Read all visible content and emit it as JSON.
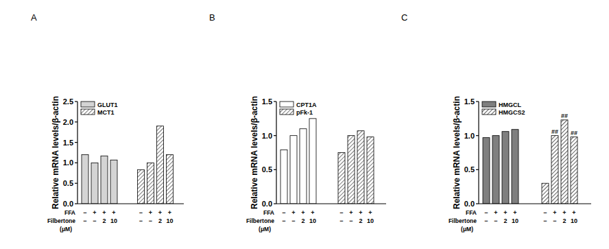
{
  "chart_data": [
    {
      "type": "bar",
      "title": "A",
      "y_label": "Relative mRNA levels/β-actin",
      "x_rows": [
        {
          "label": "FFA",
          "values": [
            "−",
            "+",
            "+",
            "+"
          ]
        },
        {
          "label": "Filbertone",
          "unit": "(μM)",
          "values": [
            "−",
            "−",
            "2",
            "10"
          ]
        }
      ],
      "series": [
        {
          "name": "GLUT1",
          "color": "#d4d4d4",
          "values": [
            1.2,
            1.0,
            1.17,
            1.07
          ]
        },
        {
          "name": "MCT1",
          "color": "#555555",
          "values": [
            0.83,
            1.0,
            1.9,
            1.2
          ]
        }
      ],
      "ylim": [
        0,
        2.5
      ],
      "yticks": [
        {
          "value": 0,
          "label": "0.0"
        },
        0.5,
        {
          "value": 1,
          "label": "1.0"
        },
        1.5,
        {
          "value": 2,
          "label": "2.0"
        },
        2.5
      ],
      "legend": "upper left"
    },
    {
      "type": "bar",
      "title": "B",
      "y_label": "Relative mRNA levels/β-actin",
      "x_rows": [
        {
          "label": "FFA",
          "values": [
            "−",
            "+",
            "+",
            "+"
          ]
        },
        {
          "label": "Filbertone",
          "unit": "(μM)",
          "values": [
            "−",
            "−",
            "2",
            "10"
          ]
        }
      ],
      "series": [
        {
          "name": "CPT1A",
          "color": "#ffffff",
          "values": [
            0.79,
            1.0,
            1.1,
            1.25
          ]
        },
        {
          "name": "pFk-1",
          "color": "#555555",
          "values": [
            0.75,
            1.0,
            1.07,
            0.98
          ]
        }
      ],
      "ylim": [
        0,
        1.5
      ],
      "yticks": [
        {
          "value": 0,
          "label": "0.0"
        },
        0.5,
        {
          "value": 1,
          "label": "1.0"
        },
        1.5
      ],
      "legend": "upper left"
    },
    {
      "type": "bar",
      "title": "C",
      "y_label": "Relative mRNA levels/β-actin",
      "x_rows": [
        {
          "label": "FFA",
          "values": [
            "−",
            "+",
            "+",
            "+"
          ]
        },
        {
          "label": "Filbertone",
          "unit": "(μM)",
          "values": [
            "−",
            "−",
            "2",
            "10"
          ]
        }
      ],
      "series": [
        {
          "name": "HMGCL",
          "color": "#7f7f7f",
          "values": [
            0.97,
            1.0,
            1.06,
            1.09
          ]
        },
        {
          "name": "HMGCS2",
          "color": "#333333",
          "values": [
            0.3,
            1.0,
            1.23,
            0.98
          ]
        }
      ],
      "ylim": [
        0,
        1.5
      ],
      "yticks": [
        {
          "value": 0,
          "label": "0.0"
        },
        0.5,
        {
          "value": 1,
          "label": "1.0"
        },
        1.5
      ],
      "annotations": [
        {
          "series": 1,
          "index": 1,
          "text": "##"
        },
        {
          "series": 1,
          "index": 2,
          "text": "##"
        },
        {
          "series": 1,
          "index": 3,
          "text": "##"
        }
      ],
      "legend": "upper left"
    }
  ]
}
